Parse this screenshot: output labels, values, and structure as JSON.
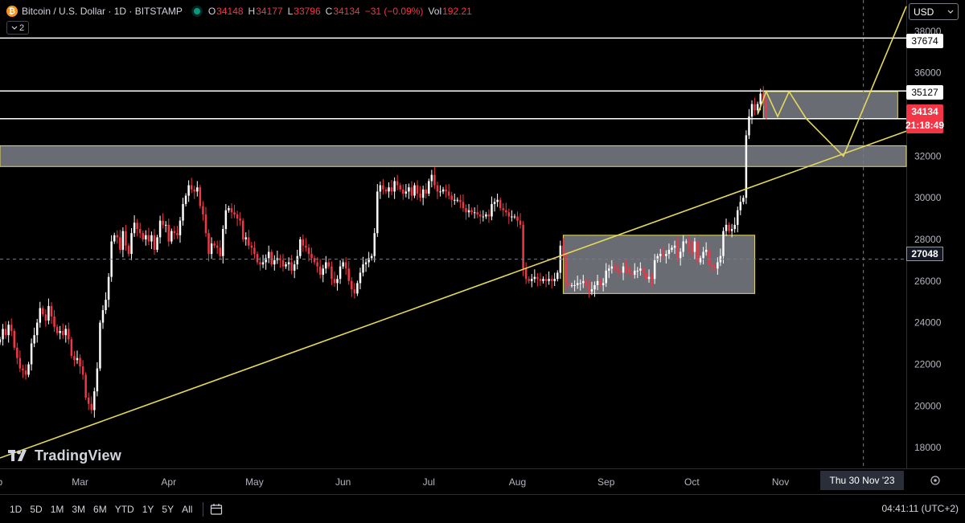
{
  "legend": {
    "symbol": "Bitcoin / U.S. Dollar · 1D · BITSTAMP",
    "open_label": "O",
    "open": "34148",
    "high_label": "H",
    "high": "34177",
    "low_label": "L",
    "low": "33796",
    "close_label": "C",
    "close": "34134",
    "change": "−31 (−0.09%)",
    "vol_label": "Vol",
    "vol": "192.21",
    "indicators_count": "2",
    "colors": {
      "up": "#ffffff",
      "down": "#f23645",
      "dot": "#089981"
    }
  },
  "currency": {
    "label": "USD"
  },
  "price_axis": {
    "ticks": [
      "38000",
      "36000",
      "34000",
      "32000",
      "30000",
      "28000",
      "26000",
      "24000",
      "22000",
      "20000",
      "18000"
    ]
  },
  "price_tags": {
    "level_top": "37674",
    "level_upper": "35127",
    "last_price": "34134",
    "countdown": "21:18:49",
    "crosshair": "27048"
  },
  "time_axis": {
    "labels": [
      "eb",
      "Mar",
      "Apr",
      "May",
      "Jun",
      "Jul",
      "Aug",
      "Sep",
      "Oct",
      "Nov"
    ],
    "crosshair_date": "Thu 30 Nov '23"
  },
  "watermark": {
    "text": "TradingView"
  },
  "bottom_bar": {
    "ranges": [
      "1D",
      "5D",
      "1M",
      "3M",
      "6M",
      "YTD",
      "1Y",
      "5Y",
      "All"
    ],
    "clock": "04:41:11 (UTC+2)"
  },
  "chart_data": {
    "type": "candlestick",
    "title": "Bitcoin / U.S. Dollar · 1D · BITSTAMP",
    "y_range": [
      17000,
      39500
    ],
    "x_range": [
      "2023-02-01",
      "2023-12-15"
    ],
    "colors": {
      "up": "#ffffff",
      "down": "#f23645",
      "drawing": "#e5d95a",
      "zone_fill": "#7c7f88"
    },
    "horizontal_levels": [
      37674,
      35127,
      33800
    ],
    "zones": [
      {
        "from": "2023-02-01",
        "to": "2023-12-15",
        "low": 31500,
        "high": 32500
      },
      {
        "from": "2023-08-17",
        "to": "2023-10-23",
        "low": 25400,
        "high": 28200
      },
      {
        "from": "2023-10-26",
        "to": "2023-12-12",
        "low": 33800,
        "high": 35100
      }
    ],
    "trendline": {
      "from": [
        "2023-02-01",
        17500
      ],
      "to": [
        "2023-12-15",
        33200
      ]
    },
    "projection": [
      [
        "2023-10-24",
        34000
      ],
      [
        "2023-10-27",
        35100
      ],
      [
        "2023-10-31",
        33900
      ],
      [
        "2023-11-04",
        35100
      ],
      [
        "2023-11-10",
        33800
      ],
      [
        "2023-11-23",
        32000
      ],
      [
        "2023-12-15",
        39200
      ]
    ],
    "crosshair": {
      "date": "2023-11-30",
      "price": 27048
    },
    "closes": [
      23200,
      23700,
      23400,
      23900,
      23600,
      22800,
      22300,
      21800,
      21700,
      21500,
      22000,
      23000,
      23400,
      24000,
      24700,
      24400,
      24100,
      24800,
      24300,
      23800,
      23500,
      23600,
      23400,
      23700,
      23200,
      22400,
      22200,
      22300,
      21900,
      21500,
      20400,
      20100,
      19800,
      20700,
      21800,
      24000,
      24600,
      25100,
      26200,
      27900,
      28200,
      28100,
      27500,
      28400,
      27700,
      27300,
      28300,
      28800,
      28500,
      28300,
      28000,
      28200,
      27900,
      28200,
      27500,
      28100,
      28900,
      28700,
      28700,
      27900,
      28400,
      28300,
      28200,
      28900,
      29700,
      30100,
      30600,
      30400,
      30300,
      30500,
      29600,
      29200,
      28300,
      27300,
      27800,
      27700,
      27600,
      27200,
      28500,
      29400,
      29500,
      29300,
      29200,
      29000,
      28900,
      28000,
      28100,
      27700,
      27600,
      27300,
      26900,
      26800,
      26900,
      27100,
      27400,
      26800,
      27000,
      27100,
      27000,
      26700,
      26800,
      26900,
      26500,
      26800,
      27200,
      28000,
      27700,
      27600,
      27300,
      27100,
      26900,
      26700,
      26300,
      26600,
      26900,
      26700,
      26100,
      25900,
      26100,
      26700,
      26900,
      26600,
      26000,
      25600,
      25400,
      25900,
      26400,
      26800,
      26900,
      27100,
      27200,
      28300,
      30300,
      30600,
      30400,
      30300,
      30500,
      30300,
      30800,
      30600,
      30400,
      30200,
      30300,
      30500,
      30100,
      30600,
      30200,
      30000,
      30400,
      30200,
      30800,
      31100,
      30600,
      30300,
      30300,
      30400,
      30300,
      30100,
      29900,
      29900,
      29900,
      29800,
      29500,
      29300,
      29400,
      29300,
      29300,
      29200,
      29100,
      29100,
      29200,
      29100,
      29700,
      29800,
      29900,
      29500,
      29400,
      29300,
      29100,
      29100,
      29100,
      28900,
      28700,
      26600,
      26100,
      26000,
      26100,
      26200,
      26100,
      26000,
      26100,
      26000,
      26100,
      26000,
      26100,
      26400,
      27700,
      27300,
      25900,
      25800,
      25800,
      25800,
      25900,
      25900,
      26000,
      25800,
      25500,
      25600,
      25800,
      26000,
      25800,
      25900,
      26500,
      26600,
      26700,
      26600,
      26500,
      26400,
      26700,
      26600,
      26400,
      26300,
      26500,
      26500,
      26600,
      26400,
      26100,
      26200,
      26100,
      27000,
      27200,
      27300,
      27200,
      27300,
      27500,
      27600,
      27700,
      27100,
      27400,
      27900,
      27900,
      27600,
      27400,
      27900,
      26900,
      27100,
      27400,
      27500,
      26800,
      26700,
      26600,
      26900,
      27200,
      28400,
      28700,
      28400,
      28500,
      28700,
      29400,
      29800,
      30000,
      33000,
      33900,
      34500,
      34200,
      34500,
      35000,
      34600,
      34134
    ]
  }
}
